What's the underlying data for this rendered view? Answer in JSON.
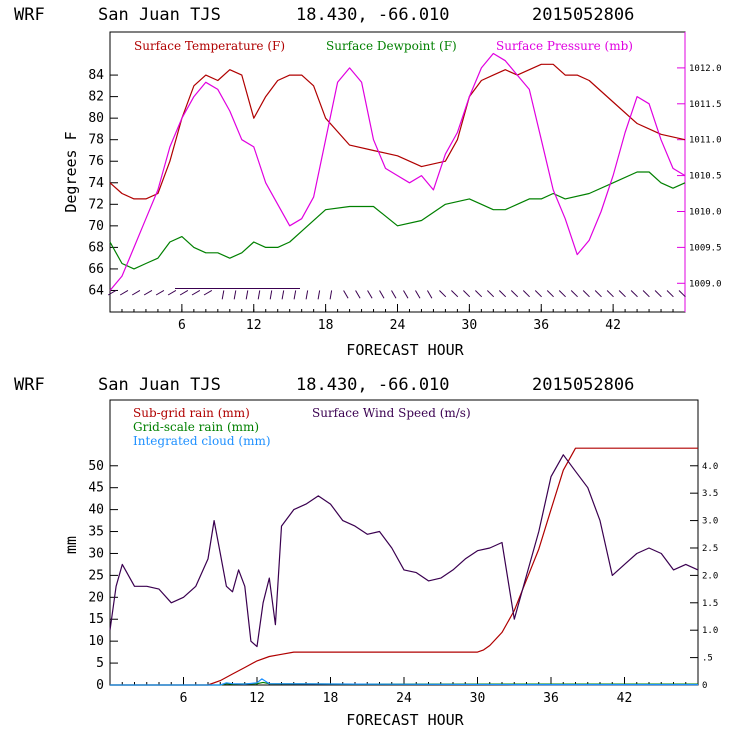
{
  "chart_data": [
    {
      "type": "line",
      "header": {
        "model": "WRF",
        "station": "San Juan TJS",
        "coords": "18.430, -66.010",
        "date": "2015052806"
      },
      "xlabel": "FORECAST HOUR",
      "ylabel": "Degrees F",
      "x_ticks": [
        "6",
        "12",
        "18",
        "24",
        "30",
        "36",
        "42"
      ],
      "xlim": [
        0,
        48
      ],
      "y_ticks": [
        "64",
        "66",
        "68",
        "70",
        "72",
        "74",
        "76",
        "78",
        "80",
        "82",
        "84"
      ],
      "ylim": [
        62,
        88
      ],
      "y2_ticks": [
        "1009.0",
        "1009.5",
        "1010.0",
        "1010.5",
        "1011.0",
        "1011.5",
        "1012.0"
      ],
      "y2lim": [
        1008.6,
        1012.5
      ],
      "wind_barb_row_value": 64,
      "series": [
        {
          "name": "Surface Temperature (F)",
          "color": "#b00000",
          "axis": "left",
          "x": [
            0,
            1,
            2,
            3,
            4,
            5,
            6,
            7,
            8,
            9,
            10,
            11,
            12,
            13,
            14,
            15,
            16,
            17,
            18,
            20,
            22,
            24,
            26,
            28,
            29,
            30,
            31,
            32,
            33,
            34,
            35,
            36,
            37,
            38,
            39,
            40,
            42,
            44,
            46,
            48
          ],
          "values": [
            74,
            73,
            72.5,
            72.5,
            73,
            76,
            80,
            83,
            84,
            83.5,
            84.5,
            84,
            80,
            82,
            83.5,
            84,
            84,
            83,
            80,
            77.5,
            77,
            76.5,
            75.5,
            76,
            78,
            82,
            83.5,
            84,
            84.5,
            84,
            84.5,
            85,
            85,
            84,
            84,
            83.5,
            81.5,
            79.5,
            78.5,
            78
          ]
        },
        {
          "name": "Surface Dewpoint (F)",
          "color": "#008000",
          "axis": "left",
          "x": [
            0,
            1,
            2,
            3,
            4,
            5,
            6,
            7,
            8,
            9,
            10,
            11,
            12,
            13,
            14,
            15,
            16,
            18,
            20,
            22,
            24,
            26,
            28,
            30,
            31,
            32,
            33,
            34,
            35,
            36,
            37,
            38,
            40,
            42,
            44,
            45,
            46,
            47,
            48
          ],
          "values": [
            68.5,
            66.5,
            66,
            66.5,
            67,
            68.5,
            69,
            68,
            67.5,
            67.5,
            67,
            67.5,
            68.5,
            68,
            68,
            68.5,
            69.5,
            71.5,
            71.8,
            71.8,
            70,
            70.5,
            72,
            72.5,
            72,
            71.5,
            71.5,
            72,
            72.5,
            72.5,
            73,
            72.5,
            73,
            74,
            75,
            75,
            74,
            73.5,
            74
          ]
        },
        {
          "name": "Surface Pressure (mb)",
          "color": "#e000e0",
          "axis": "right",
          "x": [
            0,
            1,
            2,
            3,
            4,
            5,
            6,
            7,
            8,
            9,
            10,
            11,
            12,
            13,
            14,
            15,
            16,
            17,
            18,
            19,
            20,
            21,
            22,
            23,
            24,
            25,
            26,
            27,
            28,
            29,
            30,
            31,
            32,
            33,
            34,
            35,
            36,
            37,
            38,
            39,
            40,
            41,
            42,
            43,
            44,
            45,
            46,
            47,
            48
          ],
          "values": [
            1008.9,
            1009.1,
            1009.5,
            1009.9,
            1010.3,
            1010.9,
            1011.3,
            1011.6,
            1011.8,
            1011.7,
            1011.4,
            1011.0,
            1010.9,
            1010.4,
            1010.1,
            1009.8,
            1009.9,
            1010.2,
            1011.0,
            1011.8,
            1012.0,
            1011.8,
            1011.0,
            1010.6,
            1010.5,
            1010.4,
            1010.5,
            1010.3,
            1010.8,
            1011.1,
            1011.6,
            1012.0,
            1012.2,
            1012.1,
            1011.9,
            1011.7,
            1011.0,
            1010.3,
            1009.9,
            1009.4,
            1009.6,
            1010.0,
            1010.5,
            1011.1,
            1011.6,
            1011.5,
            1011.0,
            1010.6,
            1010.5
          ]
        }
      ]
    },
    {
      "type": "line",
      "header": {
        "model": "WRF",
        "station": "San Juan TJS",
        "coords": "18.430, -66.010",
        "date": "2015052806"
      },
      "xlabel": "FORECAST HOUR",
      "ylabel": "mm",
      "x_ticks": [
        "6",
        "12",
        "18",
        "24",
        "30",
        "36",
        "42"
      ],
      "xlim": [
        0,
        48
      ],
      "y_ticks": [
        "0",
        "5",
        "10",
        "15",
        "20",
        "25",
        "30",
        "35",
        "40",
        "45",
        "50"
      ],
      "ylim": [
        0,
        65
      ],
      "y2_ticks": [
        "0",
        ".5",
        "1.0",
        "1.5",
        "2.0",
        "2.5",
        "3.0",
        "3.5",
        "4.0"
      ],
      "y2lim": [
        0,
        5.2
      ],
      "series": [
        {
          "name": "Sub-grid rain (mm)",
          "color": "#b00000",
          "axis": "left",
          "x": [
            0,
            8,
            9,
            10,
            11,
            12,
            13,
            14,
            15,
            16,
            18,
            20,
            24,
            28,
            30,
            30.5,
            31,
            32,
            33,
            34,
            35,
            36,
            37,
            38,
            40,
            44,
            48
          ],
          "values": [
            0,
            0,
            1,
            2.5,
            4,
            5.5,
            6.5,
            7,
            7.5,
            7.5,
            7.5,
            7.5,
            7.5,
            7.5,
            7.5,
            8,
            9,
            12,
            17,
            24,
            31,
            40,
            49,
            54,
            54,
            54,
            54
          ]
        },
        {
          "name": "Grid-scale rain (mm)",
          "color": "#008000",
          "axis": "left",
          "x": [
            0,
            9,
            9.5,
            10,
            12,
            12.5,
            13,
            20,
            48
          ],
          "values": [
            0,
            0,
            0.3,
            0.2,
            0.3,
            0.6,
            0.3,
            0.2,
            0.2
          ]
        },
        {
          "name": "Integrated cloud (mm)",
          "color": "#1e90ff",
          "axis": "left",
          "x": [
            0,
            9,
            9.5,
            10,
            11,
            12,
            12.4,
            13,
            20,
            33,
            48
          ],
          "values": [
            0,
            0,
            0.5,
            0.3,
            0.2,
            0.5,
            1.4,
            0.3,
            0.2,
            0.1,
            0.1
          ]
        },
        {
          "name": "Surface Wind Speed (m/s)",
          "color": "#3a0050",
          "axis": "right",
          "x": [
            0,
            0.5,
            1,
            2,
            3,
            4,
            5,
            6,
            7,
            8,
            8.5,
            9,
            9.5,
            10,
            10.5,
            11,
            11.5,
            12,
            12.5,
            13,
            13.5,
            14,
            15,
            16,
            17,
            18,
            19,
            20,
            21,
            22,
            23,
            24,
            25,
            26,
            27,
            28,
            29,
            30,
            31,
            32,
            33,
            34,
            35,
            36,
            37,
            38,
            39,
            40,
            41,
            42,
            43,
            44,
            45,
            46,
            47,
            48
          ],
          "values": [
            1.0,
            1.8,
            2.2,
            1.8,
            1.8,
            1.75,
            1.5,
            1.6,
            1.8,
            2.3,
            3.0,
            2.4,
            1.8,
            1.7,
            2.1,
            1.8,
            0.8,
            0.7,
            1.5,
            1.95,
            1.1,
            2.9,
            3.2,
            3.3,
            3.45,
            3.3,
            3.0,
            2.9,
            2.75,
            2.8,
            2.5,
            2.1,
            2.05,
            1.9,
            1.95,
            2.1,
            2.3,
            2.45,
            2.5,
            2.6,
            1.2,
            2.0,
            2.8,
            3.8,
            4.2,
            3.9,
            3.6,
            3.0,
            2.0,
            2.2,
            2.4,
            2.5,
            2.4,
            2.1,
            2.2,
            2.1
          ]
        }
      ]
    }
  ]
}
